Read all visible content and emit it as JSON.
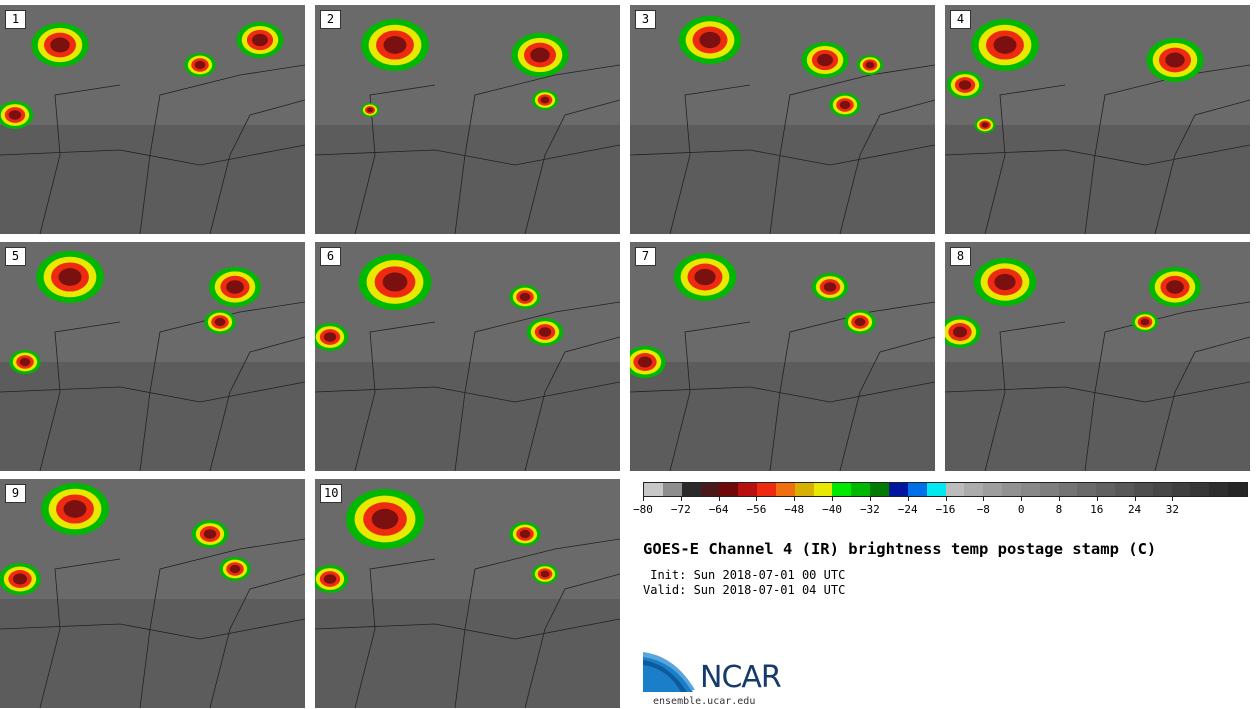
{
  "panels": [
    {
      "label": "1"
    },
    {
      "label": "2"
    },
    {
      "label": "3"
    },
    {
      "label": "4"
    },
    {
      "label": "5"
    },
    {
      "label": "6"
    },
    {
      "label": "7"
    },
    {
      "label": "8"
    },
    {
      "label": "9"
    },
    {
      "label": "10"
    }
  ],
  "colorbar": {
    "colors": [
      "#c8c8c8",
      "#8e8e8e",
      "#2a2a2a",
      "#4a1a1a",
      "#6e0a0a",
      "#b81010",
      "#ee2a10",
      "#f07010",
      "#d8b000",
      "#e8e800",
      "#00e800",
      "#00b800",
      "#007a00",
      "#0018a0",
      "#0070e8",
      "#00e8f0",
      "#bcbcbc",
      "#acacac",
      "#9e9e9e",
      "#929292",
      "#888888",
      "#7e7e7e",
      "#747474",
      "#6a6a6a",
      "#616161",
      "#585858",
      "#4f4f4f",
      "#474747",
      "#3f3f3f",
      "#373737",
      "#2e2e2e",
      "#262626"
    ],
    "ticks": [
      "−80",
      "−72",
      "−64",
      "−56",
      "−48",
      "−40",
      "−32",
      "−24",
      "−16",
      "−8",
      "0",
      "8",
      "16",
      "24",
      "32"
    ]
  },
  "title": "GOES-E Channel 4 (IR) brightness temp postage stamp (C)",
  "init_line": " Init: Sun 2018-07-01 00 UTC",
  "valid_line": "Valid: Sun 2018-07-01 04 UTC",
  "logo_text": "NCAR",
  "site": "ensemble.ucar.edu"
}
